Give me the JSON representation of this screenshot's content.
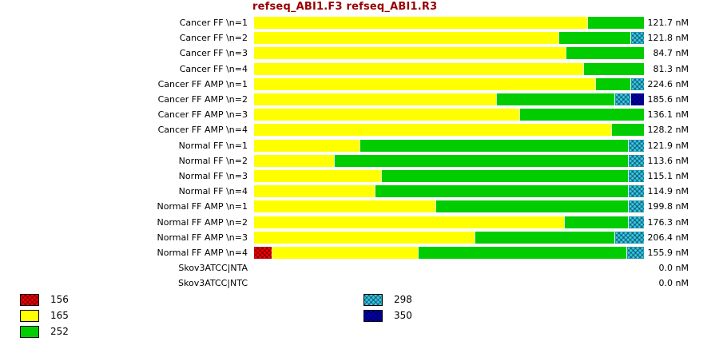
{
  "title": "refseq_ABI1.F3 refseq_ABI1.R3",
  "chart_data": {
    "type": "bar",
    "orientation": "horizontal",
    "stacked": true,
    "unit": "nM",
    "legend_position": "bottom",
    "grid": false,
    "legend": [
      {
        "label": "156",
        "color": "#ff0000",
        "pattern": true
      },
      {
        "label": "165",
        "color": "#ffff00",
        "pattern": false
      },
      {
        "label": "252",
        "color": "#00cc00",
        "pattern": false
      },
      {
        "label": "298",
        "color": "#33ccee",
        "pattern": true
      },
      {
        "label": "350",
        "color": "#0000bb",
        "pattern": true
      }
    ],
    "legend_columns": [
      [
        0,
        1,
        2
      ],
      [
        3,
        4
      ]
    ],
    "rows": [
      {
        "label": "Cancer FF \\n=1",
        "value_label": "121.7 nM",
        "segments": [
          {
            "key": "165",
            "pct": 85.5
          },
          {
            "key": "252",
            "pct": 14.5
          }
        ]
      },
      {
        "label": "Cancer FF \\n=2",
        "value_label": "121.8 nM",
        "segments": [
          {
            "key": "165",
            "pct": 78
          },
          {
            "key": "252",
            "pct": 18.5
          },
          {
            "key": "298",
            "pct": 3.5
          }
        ]
      },
      {
        "label": "Cancer FF \\n=3",
        "value_label": "84.7 nM",
        "segments": [
          {
            "key": "165",
            "pct": 80
          },
          {
            "key": "252",
            "pct": 20
          }
        ]
      },
      {
        "label": "Cancer FF \\n=4",
        "value_label": "81.3 nM",
        "segments": [
          {
            "key": "165",
            "pct": 84.5
          },
          {
            "key": "252",
            "pct": 15.5
          }
        ]
      },
      {
        "label": "Cancer FF AMP \\n=1",
        "value_label": "224.6 nM",
        "segments": [
          {
            "key": "165",
            "pct": 87.5
          },
          {
            "key": "252",
            "pct": 9
          },
          {
            "key": "298",
            "pct": 3.5
          }
        ]
      },
      {
        "label": "Cancer FF AMP \\n=2",
        "value_label": "185.6 nM",
        "segments": [
          {
            "key": "165",
            "pct": 62
          },
          {
            "key": "252",
            "pct": 30.5
          },
          {
            "key": "298",
            "pct": 4
          },
          {
            "key": "350",
            "pct": 3.5
          }
        ]
      },
      {
        "label": "Cancer FF AMP \\n=3",
        "value_label": "136.1 nM",
        "segments": [
          {
            "key": "165",
            "pct": 68
          },
          {
            "key": "252",
            "pct": 32
          }
        ]
      },
      {
        "label": "Cancer FF AMP \\n=4",
        "value_label": "128.2 nM",
        "segments": [
          {
            "key": "165",
            "pct": 91.5
          },
          {
            "key": "252",
            "pct": 8.5
          }
        ]
      },
      {
        "label": "Normal FF \\n=1",
        "value_label": "121.9 nM",
        "segments": [
          {
            "key": "165",
            "pct": 27
          },
          {
            "key": "252",
            "pct": 69
          },
          {
            "key": "298",
            "pct": 4
          }
        ]
      },
      {
        "label": "Normal FF \\n=2",
        "value_label": "113.6 nM",
        "segments": [
          {
            "key": "165",
            "pct": 20.5
          },
          {
            "key": "252",
            "pct": 75.5
          },
          {
            "key": "298",
            "pct": 4
          }
        ]
      },
      {
        "label": "Normal FF \\n=3",
        "value_label": "115.1 nM",
        "segments": [
          {
            "key": "165",
            "pct": 32.5
          },
          {
            "key": "252",
            "pct": 63.5
          },
          {
            "key": "298",
            "pct": 4
          }
        ]
      },
      {
        "label": "Normal FF \\n=4",
        "value_label": "114.9 nM",
        "segments": [
          {
            "key": "165",
            "pct": 31
          },
          {
            "key": "252",
            "pct": 65
          },
          {
            "key": "298",
            "pct": 4
          }
        ]
      },
      {
        "label": "Normal FF AMP \\n=1",
        "value_label": "199.8 nM",
        "segments": [
          {
            "key": "165",
            "pct": 46.5
          },
          {
            "key": "252",
            "pct": 49.5
          },
          {
            "key": "298",
            "pct": 4
          }
        ]
      },
      {
        "label": "Normal FF AMP \\n=2",
        "value_label": "176.3 nM",
        "segments": [
          {
            "key": "165",
            "pct": 79.5
          },
          {
            "key": "252",
            "pct": 16.5
          },
          {
            "key": "298",
            "pct": 4
          }
        ]
      },
      {
        "label": "Normal FF AMP \\n=3",
        "value_label": "206.4 nM",
        "segments": [
          {
            "key": "165",
            "pct": 56.5
          },
          {
            "key": "252",
            "pct": 36
          },
          {
            "key": "298",
            "pct": 7.5
          }
        ]
      },
      {
        "label": "Normal FF AMP \\n=4",
        "value_label": "155.9 nM",
        "segments": [
          {
            "key": "156",
            "pct": 4.5
          },
          {
            "key": "165",
            "pct": 37.5
          },
          {
            "key": "252",
            "pct": 53.5
          },
          {
            "key": "298",
            "pct": 4.5
          }
        ]
      },
      {
        "label": "Skov3ATCC|NTA",
        "value_label": "0.0 nM",
        "segments": []
      },
      {
        "label": "Skov3ATCC|NTC",
        "value_label": "0.0 nM",
        "segments": []
      }
    ]
  }
}
